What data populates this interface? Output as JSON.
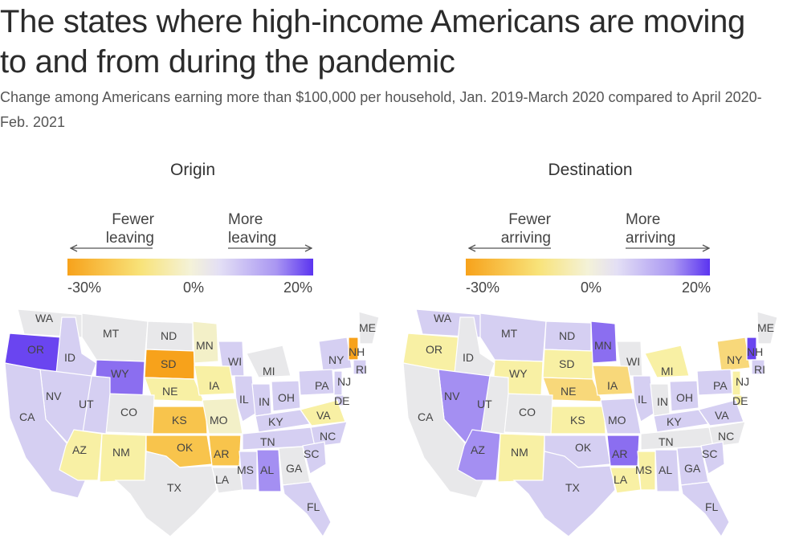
{
  "title": "The states where high-income Americans are moving to and from during the pandemic",
  "subtitle": "Change among Americans earning more than $100,000 per household, Jan. 2019-March 2020 compared to April 2020-Feb. 2021",
  "colors": {
    "low": "#f7a21b",
    "mid_low": "#f8f0a4",
    "neutral": "#e8e8ea",
    "mid_high": "#d5cff2",
    "high": "#6a45f0",
    "no_data": "#e6e6e3"
  },
  "origin": {
    "title": "Origin",
    "legend_left": "Fewer leaving",
    "legend_right": "More leaving",
    "ticks": [
      "-30%",
      "0%",
      "20%"
    ],
    "states": [
      "WA",
      "OR",
      "ID",
      "MT",
      "WY",
      "ND",
      "SD",
      "NE",
      "MN",
      "WI",
      "IA",
      "MI",
      "IL",
      "IN",
      "OH",
      "NY",
      "PA",
      "NJ",
      "DE",
      "VA",
      "KY",
      "KS",
      "MO",
      "CO",
      "UT",
      "NV",
      "CA",
      "AZ",
      "NM",
      "OK",
      "AR",
      "TX",
      "LA",
      "MS",
      "AL",
      "TN",
      "NC",
      "SC",
      "GA",
      "FL",
      "ME",
      "NH",
      "RI"
    ]
  },
  "destination": {
    "title": "Destination",
    "legend_left": "Fewer arriving",
    "legend_right": "More arriving",
    "ticks": [
      "-30%",
      "0%",
      "20%"
    ],
    "states": [
      "WA",
      "OR",
      "ID",
      "MT",
      "WY",
      "ND",
      "SD",
      "NE",
      "MN",
      "WI",
      "IA",
      "MI",
      "IL",
      "IN",
      "OH",
      "NY",
      "PA",
      "NJ",
      "DE",
      "VA",
      "KY",
      "KS",
      "MO",
      "CO",
      "UT",
      "NV",
      "CA",
      "AZ",
      "NM",
      "OK",
      "AR",
      "TX",
      "LA",
      "MS",
      "AL",
      "TN",
      "NC",
      "SC",
      "GA",
      "FL",
      "ME",
      "NH",
      "RI"
    ]
  }
}
